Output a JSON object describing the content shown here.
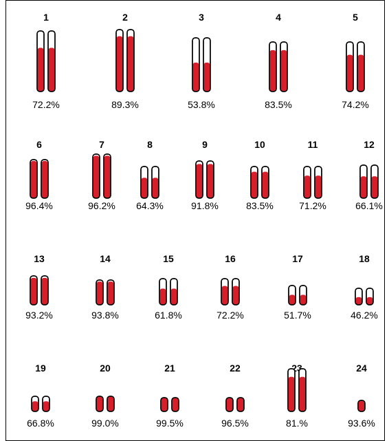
{
  "chromosomes": [
    {
      "label": "1",
      "coverage": "72.2%"
    },
    {
      "label": "2",
      "coverage": "89.3%"
    },
    {
      "label": "3",
      "coverage": "53.8%"
    },
    {
      "label": "4",
      "coverage": "83.5%"
    },
    {
      "label": "5",
      "coverage": "74.2%"
    },
    {
      "label": "6",
      "coverage": "96.4%"
    },
    {
      "label": "7",
      "coverage": "96.2%"
    },
    {
      "label": "8",
      "coverage": "64.3%"
    },
    {
      "label": "9",
      "coverage": "91.8%"
    },
    {
      "label": "10",
      "coverage": "83.5%"
    },
    {
      "label": "11",
      "coverage": "71.2%"
    },
    {
      "label": "12",
      "coverage": "66.1%"
    },
    {
      "label": "13",
      "coverage": "93.2%"
    },
    {
      "label": "14",
      "coverage": "93.8%"
    },
    {
      "label": "15",
      "coverage": "61.8%"
    },
    {
      "label": "16",
      "coverage": "72.2%"
    },
    {
      "label": "17",
      "coverage": "51.7%"
    },
    {
      "label": "18",
      "coverage": "46.2%"
    },
    {
      "label": "19",
      "coverage": "66.8%"
    },
    {
      "label": "20",
      "coverage": "99.0%"
    },
    {
      "label": "21",
      "coverage": "99.5%"
    },
    {
      "label": "22",
      "coverage": "96.5%"
    },
    {
      "label": "23",
      "coverage": "81.%"
    },
    {
      "label": "24",
      "coverage": "93.6%"
    }
  ]
}
